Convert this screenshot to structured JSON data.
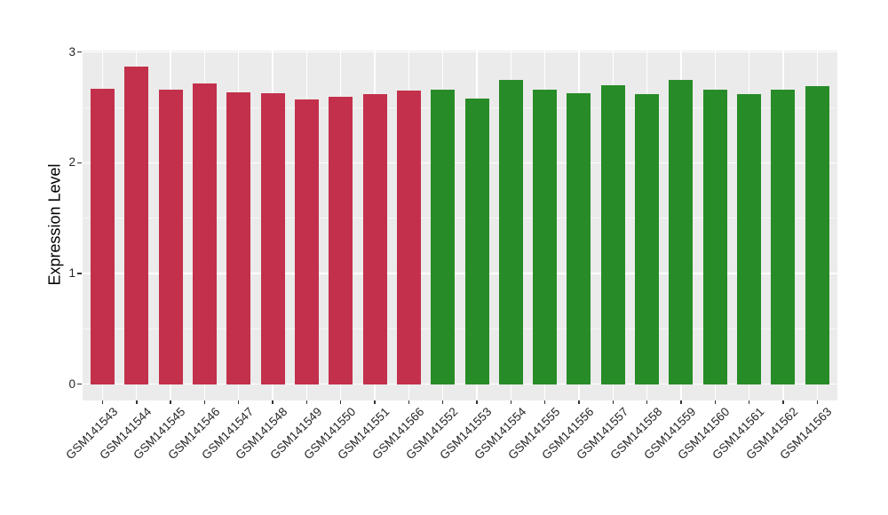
{
  "figure": {
    "background_color": "#FFFFFF",
    "panel_background_color": "#EBEBEB",
    "grid_color": "#FFFFFF",
    "red_bar_color": "#C3304B",
    "green_bar_color": "#278C27"
  },
  "chart_data": {
    "type": "bar",
    "title": "",
    "xlabel": "",
    "ylabel": "Expression Level",
    "ylim": [
      -0.14,
      3.01
    ],
    "yticks": [
      0,
      1,
      2,
      3
    ],
    "ytick_labels": [
      "0",
      "1",
      "2",
      "3"
    ],
    "yticks_minor": [
      0.5,
      1.5,
      2.5
    ],
    "grid": "on",
    "legend": "none",
    "categories": [
      "GSM141543",
      "GSM141544",
      "GSM141545",
      "GSM141546",
      "GSM141547",
      "GSM141548",
      "GSM141549",
      "GSM141550",
      "GSM141551",
      "GSM141566",
      "GSM141552",
      "GSM141553",
      "GSM141554",
      "GSM141555",
      "GSM141556",
      "GSM141557",
      "GSM141558",
      "GSM141559",
      "GSM141560",
      "GSM141561",
      "GSM141562",
      "GSM141563"
    ],
    "values": [
      2.67,
      2.87,
      2.66,
      2.72,
      2.64,
      2.63,
      2.57,
      2.6,
      2.62,
      2.65,
      2.66,
      2.58,
      2.75,
      2.66,
      2.63,
      2.7,
      2.62,
      2.75,
      2.66,
      2.62,
      2.66,
      2.69
    ],
    "bar_colors": [
      "#C3304B",
      "#C3304B",
      "#C3304B",
      "#C3304B",
      "#C3304B",
      "#C3304B",
      "#C3304B",
      "#C3304B",
      "#C3304B",
      "#C3304B",
      "#278C27",
      "#278C27",
      "#278C27",
      "#278C27",
      "#278C27",
      "#278C27",
      "#278C27",
      "#278C27",
      "#278C27",
      "#278C27",
      "#278C27",
      "#278C27"
    ]
  }
}
